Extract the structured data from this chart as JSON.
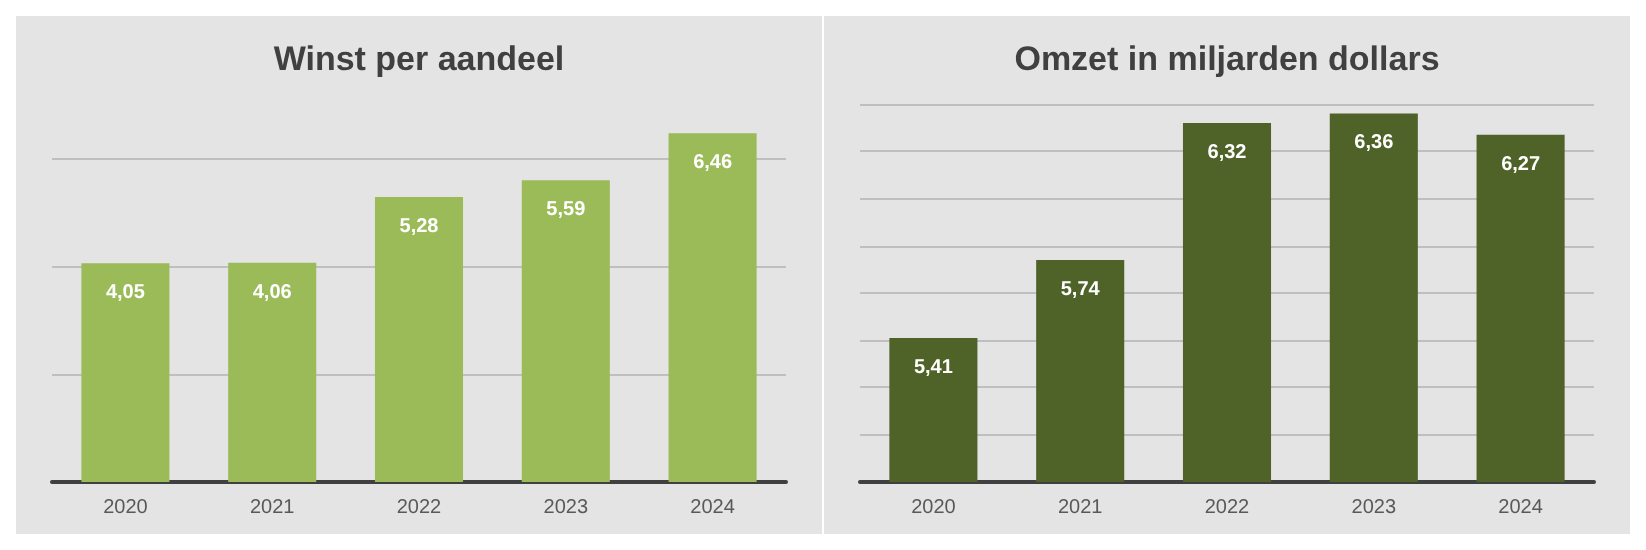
{
  "chart_data": [
    {
      "type": "bar",
      "title": "Winst per aandeel",
      "categories": [
        "2020",
        "2021",
        "2022",
        "2023",
        "2024"
      ],
      "values": [
        4.05,
        4.06,
        5.28,
        5.59,
        6.46
      ],
      "value_labels": [
        "4,05",
        "4,06",
        "5,28",
        "5,59",
        "6,46"
      ],
      "color": "#9bbb59",
      "yticks": [
        {
          "value": 0,
          "label": null
        },
        {
          "value": 2,
          "label": null
        },
        {
          "value": 4,
          "label": null
        },
        {
          "value": 6,
          "label": null
        }
      ],
      "grid": "y",
      "tick_labels": "x"
    },
    {
      "type": "bar",
      "title": "Omzet in miljarden dollars",
      "categories": [
        "2020",
        "2021",
        "2022",
        "2023",
        "2024"
      ],
      "values": [
        5.41,
        5.74,
        6.32,
        6.36,
        6.27
      ],
      "value_labels": [
        "5,41",
        "5,74",
        "6,32",
        "6,36",
        "6,27"
      ],
      "color": "#4f6228",
      "ylim": [
        4.8,
        6.4
      ],
      "yticks": [
        {
          "value": 4.8,
          "label": null
        },
        {
          "value": 5,
          "label": null
        },
        {
          "value": 5.2,
          "label": null
        },
        {
          "value": 5.4,
          "label": null
        },
        {
          "value": 5.6,
          "label": null
        },
        {
          "value": 5.8,
          "label": null
        },
        {
          "value": 6,
          "label": null
        },
        {
          "value": 6.2,
          "label": null
        },
        {
          "value": 6.4,
          "label": null
        }
      ],
      "grid": "y",
      "tick_labels": "x"
    }
  ]
}
